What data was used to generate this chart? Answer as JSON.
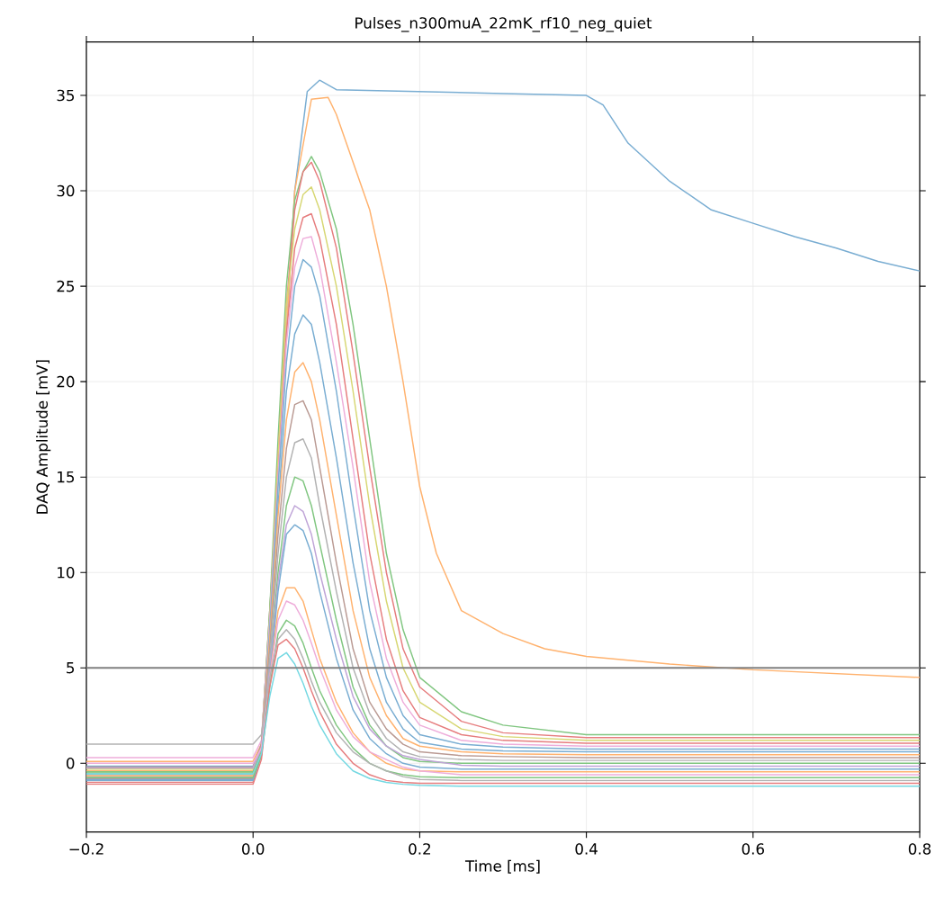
{
  "chart_data": {
    "type": "line",
    "title": "Pulses_n300muA_22mK_rf10_neg_quiet",
    "xlabel": "Time [ms]",
    "ylabel": "DAQ Amplitude [mV]",
    "xlim": [
      -0.2,
      0.8
    ],
    "ylim": [
      -3.6,
      37.8
    ],
    "xticks": [
      {
        "value": -0.2,
        "label": "−0.2"
      },
      {
        "value": 0.0,
        "label": "0.0"
      },
      {
        "value": 0.2,
        "label": "0.2"
      },
      {
        "value": 0.4,
        "label": "0.4"
      },
      {
        "value": 0.6,
        "label": "0.6"
      },
      {
        "value": 0.8,
        "label": "0.8"
      }
    ],
    "yticks": [
      0,
      5,
      10,
      15,
      20,
      25,
      30,
      35
    ],
    "grid": true,
    "line_style": "solid",
    "ref_lines": [
      {
        "axis": "y",
        "value": 5,
        "color": "#808080"
      }
    ],
    "x": [
      -0.2,
      -0.1,
      0.0,
      0.01,
      0.02,
      0.03,
      0.04,
      0.05,
      0.06,
      0.07,
      0.08,
      0.1,
      0.12,
      0.14,
      0.16,
      0.18,
      0.2,
      0.25,
      0.3,
      0.4,
      0.5,
      0.6,
      0.7,
      0.8
    ],
    "series": [
      {
        "color": "#79add2",
        "x": [
          -0.2,
          -0.1,
          0.0,
          0.01,
          0.03,
          0.05,
          0.065,
          0.08,
          0.1,
          0.2,
          0.3,
          0.4,
          0.42,
          0.45,
          0.5,
          0.55,
          0.6,
          0.65,
          0.7,
          0.75,
          0.8
        ],
        "values": [
          -0.15,
          -0.15,
          -0.15,
          1,
          15,
          30,
          35.2,
          35.8,
          35.3,
          35.2,
          35.1,
          35.0,
          34.5,
          32.5,
          30.5,
          29,
          28.3,
          27.6,
          27,
          26.3,
          25.8
        ]
      },
      {
        "color": "#ffb26e",
        "x": [
          -0.2,
          -0.1,
          0.0,
          0.01,
          0.03,
          0.05,
          0.07,
          0.09,
          0.1,
          0.12,
          0.14,
          0.16,
          0.18,
          0.2,
          0.22,
          0.25,
          0.3,
          0.35,
          0.4,
          0.5,
          0.6,
          0.7,
          0.8
        ],
        "values": [
          0.1,
          0.1,
          0.1,
          1,
          15,
          30,
          34.8,
          34.9,
          34,
          31.5,
          29,
          25,
          20,
          14.5,
          11,
          8,
          6.8,
          6,
          5.6,
          5.2,
          4.9,
          4.7,
          4.5
        ]
      },
      {
        "color": "#80c680",
        "values": [
          -0.5,
          -0.5,
          -0.5,
          1,
          8,
          17,
          25,
          29.5,
          31,
          31.8,
          31,
          28,
          23,
          17,
          11,
          7,
          4.5,
          2.7,
          2,
          1.5,
          1.5,
          1.5,
          1.5,
          1.5
        ]
      },
      {
        "color": "#e67d7e",
        "values": [
          -1,
          -1,
          -1,
          0.5,
          7,
          16,
          24,
          29,
          31,
          31.5,
          30.5,
          27,
          21.5,
          15.5,
          10,
          6,
          4,
          2.2,
          1.6,
          1.35,
          1.35,
          1.35,
          1.35,
          1.35
        ]
      },
      {
        "color": "#d7d773",
        "values": [
          -0.3,
          -0.3,
          -0.3,
          1,
          7.5,
          16,
          24,
          28,
          29.8,
          30.2,
          29,
          25,
          19.5,
          13.5,
          8.5,
          5,
          3.2,
          1.8,
          1.4,
          1.2,
          1.2,
          1.2,
          1.2,
          1.2
        ]
      },
      {
        "color": "#e67d7e",
        "values": [
          -0.8,
          -0.8,
          -0.8,
          0.5,
          7,
          15,
          22.5,
          27,
          28.6,
          28.8,
          27.5,
          23,
          17,
          11,
          6.5,
          3.8,
          2.4,
          1.5,
          1.2,
          1.05,
          1.05,
          1.05,
          1.05,
          1.05
        ]
      },
      {
        "color": "#eeadda",
        "values": [
          0.3,
          0.3,
          0.3,
          1.2,
          7.5,
          15,
          22,
          26,
          27.5,
          27.6,
          26,
          21,
          15.5,
          9.5,
          5.5,
          3.2,
          2,
          1.2,
          1,
          0.9,
          0.9,
          0.9,
          0.9,
          0.9
        ]
      },
      {
        "color": "#79add2",
        "values": [
          -0.6,
          -0.6,
          -0.6,
          0.8,
          7,
          14.5,
          21,
          25,
          26.4,
          26,
          24.5,
          19.5,
          13.5,
          8,
          4.5,
          2.5,
          1.5,
          1,
          0.85,
          0.75,
          0.75,
          0.75,
          0.75,
          0.75
        ]
      },
      {
        "color": "#79add2",
        "values": [
          -0.9,
          -0.9,
          -0.9,
          0.5,
          6.5,
          13.5,
          19.5,
          22.5,
          23.5,
          23,
          21,
          16,
          10.5,
          6,
          3.2,
          1.8,
          1.1,
          0.75,
          0.65,
          0.6,
          0.6,
          0.6,
          0.6,
          0.6
        ]
      },
      {
        "color": "#ffb26e",
        "values": [
          -0.4,
          -0.4,
          -0.4,
          1,
          6.5,
          13,
          18,
          20.5,
          21,
          20,
          18,
          13,
          8,
          4.5,
          2.5,
          1.3,
          0.9,
          0.6,
          0.5,
          0.45,
          0.45,
          0.45,
          0.45,
          0.45
        ]
      },
      {
        "color": "#ba9a93",
        "values": [
          -0.2,
          -0.2,
          -0.2,
          1,
          6,
          12,
          16.5,
          18.8,
          19,
          18,
          15.5,
          10.5,
          6,
          3.2,
          1.8,
          1,
          0.6,
          0.4,
          0.35,
          0.3,
          0.3,
          0.3,
          0.3,
          0.3
        ]
      },
      {
        "color": "#b2b2b2",
        "values": [
          -0.7,
          -0.7,
          -0.7,
          0.5,
          5.5,
          11,
          15,
          16.8,
          17,
          16,
          13.5,
          9,
          5,
          2.6,
          1.3,
          0.6,
          0.35,
          0.2,
          0.15,
          0.15,
          0.15,
          0.15,
          0.15,
          0.15
        ]
      },
      {
        "color": "#80c680",
        "values": [
          -0.45,
          -0.45,
          -0.45,
          0.6,
          5,
          10,
          13.5,
          15,
          14.8,
          13.5,
          11.5,
          7.5,
          4,
          2,
          0.9,
          0.3,
          0.1,
          0,
          0,
          0,
          0,
          0,
          0,
          0
        ]
      },
      {
        "color": "#bfa4d7",
        "values": [
          -0.25,
          -0.25,
          -0.25,
          0.8,
          5,
          9.5,
          12.5,
          13.5,
          13.2,
          12,
          10,
          6.5,
          3.5,
          1.8,
          0.9,
          0.4,
          0.2,
          -0.1,
          -0.15,
          -0.15,
          -0.15,
          -0.15,
          -0.15,
          -0.15
        ]
      },
      {
        "color": "#79add2",
        "values": [
          -0.85,
          -0.85,
          -0.85,
          0.4,
          4.5,
          9,
          12,
          12.5,
          12.2,
          11,
          9,
          5.5,
          2.8,
          1.3,
          0.5,
          0,
          -0.2,
          -0.3,
          -0.3,
          -0.3,
          -0.3,
          -0.3,
          -0.3,
          -0.3
        ]
      },
      {
        "color": "#ffb26e",
        "values": [
          -0.65,
          -0.65,
          -0.65,
          0.5,
          4.5,
          8,
          9.2,
          9.2,
          8.5,
          7,
          5.5,
          3.2,
          1.6,
          0.6,
          0,
          -0.3,
          -0.4,
          -0.45,
          -0.45,
          -0.45,
          -0.45,
          -0.45,
          -0.45,
          -0.45
        ]
      },
      {
        "color": "#eeadda",
        "values": [
          0,
          0,
          0,
          0.8,
          4.5,
          7.5,
          8.5,
          8.3,
          7.5,
          6.3,
          5,
          2.8,
          1.4,
          0.6,
          0.2,
          -0.2,
          -0.4,
          -0.6,
          -0.6,
          -0.6,
          -0.6,
          -0.6,
          -0.6,
          -0.6
        ]
      },
      {
        "color": "#80c680",
        "values": [
          -0.75,
          -0.75,
          -0.75,
          0.4,
          4,
          6.8,
          7.5,
          7.2,
          6.3,
          5,
          3.8,
          2,
          0.8,
          0,
          -0.4,
          -0.6,
          -0.7,
          -0.75,
          -0.75,
          -0.75,
          -0.75,
          -0.75,
          -0.75,
          -0.75
        ]
      },
      {
        "color": "#b2b2b2",
        "values": [
          1,
          1,
          1,
          1.5,
          4.5,
          6.5,
          7,
          6.5,
          5.5,
          4.3,
          3.2,
          1.6,
          0.6,
          0,
          -0.4,
          -0.7,
          -0.85,
          -0.9,
          -0.9,
          -0.9,
          -0.9,
          -0.9,
          -0.9,
          -0.9
        ]
      },
      {
        "color": "#e67d7e",
        "values": [
          -1.1,
          -1.1,
          -1.1,
          0.2,
          4,
          6.2,
          6.5,
          6,
          5,
          3.8,
          2.7,
          1,
          0,
          -0.6,
          -0.9,
          -1,
          -1.05,
          -1.05,
          -1.05,
          -1.05,
          -1.05,
          -1.05,
          -1.05,
          -1.05
        ]
      },
      {
        "color": "#74d8e2",
        "values": [
          -0.55,
          -0.55,
          -0.55,
          0.5,
          3.5,
          5.5,
          5.8,
          5.2,
          4.2,
          3,
          2,
          0.5,
          -0.4,
          -0.8,
          -1,
          -1.1,
          -1.15,
          -1.2,
          -1.2,
          -1.2,
          -1.2,
          -1.2,
          -1.2,
          -1.2
        ]
      }
    ]
  }
}
